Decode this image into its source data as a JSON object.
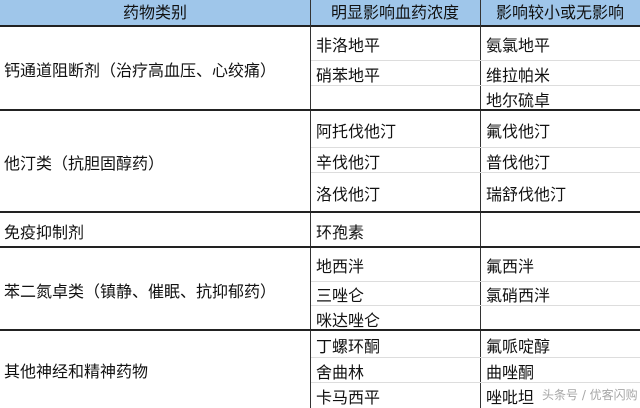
{
  "header": {
    "col1": "药物类别",
    "col2": "明显影响血药浓度",
    "col3": "影响较小或无影响"
  },
  "groups": [
    {
      "category": "钙通道阻断剂（治疗高血压、心绞痛）",
      "significant": [
        "非洛地平",
        "硝苯地平",
        ""
      ],
      "minor": [
        "氨氯地平",
        "维拉帕米",
        "地尔硫卓"
      ]
    },
    {
      "category": "他汀类（抗胆固醇药）",
      "significant": [
        "阿托伐他汀",
        "辛伐他汀",
        "洛伐他汀"
      ],
      "minor": [
        "氟伐他汀",
        "普伐他汀",
        "瑞舒伐他汀"
      ]
    },
    {
      "category": "免疫抑制剂",
      "significant": [
        "环孢素"
      ],
      "minor": [
        ""
      ]
    },
    {
      "category": "苯二氮卓类（镇静、催眠、抗抑郁药）",
      "significant": [
        "地西泮",
        "三唑仑",
        "咪达唑仑"
      ],
      "minor": [
        "氟西泮",
        "氯硝西泮",
        ""
      ]
    },
    {
      "category": "其他神经和精神药物",
      "significant": [
        "丁螺环酮",
        "舍曲林",
        "卡马西平"
      ],
      "minor": [
        "氟哌啶醇",
        "曲唑酮",
        "唑吡坦"
      ]
    }
  ],
  "watermark": "头条号 / 优客闪购",
  "colors": {
    "header_bg": "#9fc6ea"
  }
}
